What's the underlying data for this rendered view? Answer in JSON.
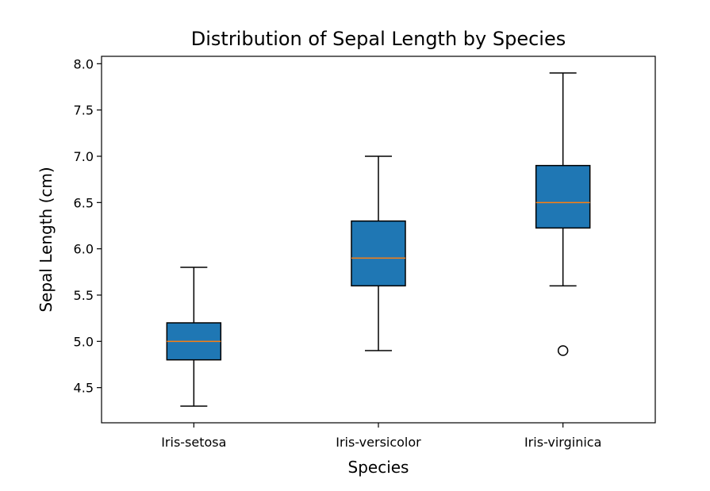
{
  "chart_data": {
    "type": "boxplot",
    "title": "Distribution of Sepal Length by Species",
    "xlabel": "Species",
    "ylabel": "Sepal Length (cm)",
    "categories": [
      "Iris-setosa",
      "Iris-versicolor",
      "Iris-virginica"
    ],
    "boxes": [
      {
        "category": "Iris-setosa",
        "whisker_low": 4.3,
        "q1": 4.8,
        "median": 5.0,
        "q3": 5.2,
        "whisker_high": 5.8,
        "outliers": []
      },
      {
        "category": "Iris-versicolor",
        "whisker_low": 4.9,
        "q1": 5.6,
        "median": 5.9,
        "q3": 6.3,
        "whisker_high": 7.0,
        "outliers": []
      },
      {
        "category": "Iris-virginica",
        "whisker_low": 5.6,
        "q1": 6.225,
        "median": 6.5,
        "q3": 6.9,
        "whisker_high": 7.9,
        "outliers": [
          4.9
        ]
      }
    ],
    "yticks": [
      "4.5",
      "5.0",
      "5.5",
      "6.0",
      "6.5",
      "7.0",
      "7.5",
      "8.0"
    ],
    "ylim": [
      4.12,
      8.08
    ],
    "grid": false,
    "colors": {
      "box_fill": "#1f77b4",
      "median": "#ff7f0e",
      "line": "#000000"
    }
  }
}
